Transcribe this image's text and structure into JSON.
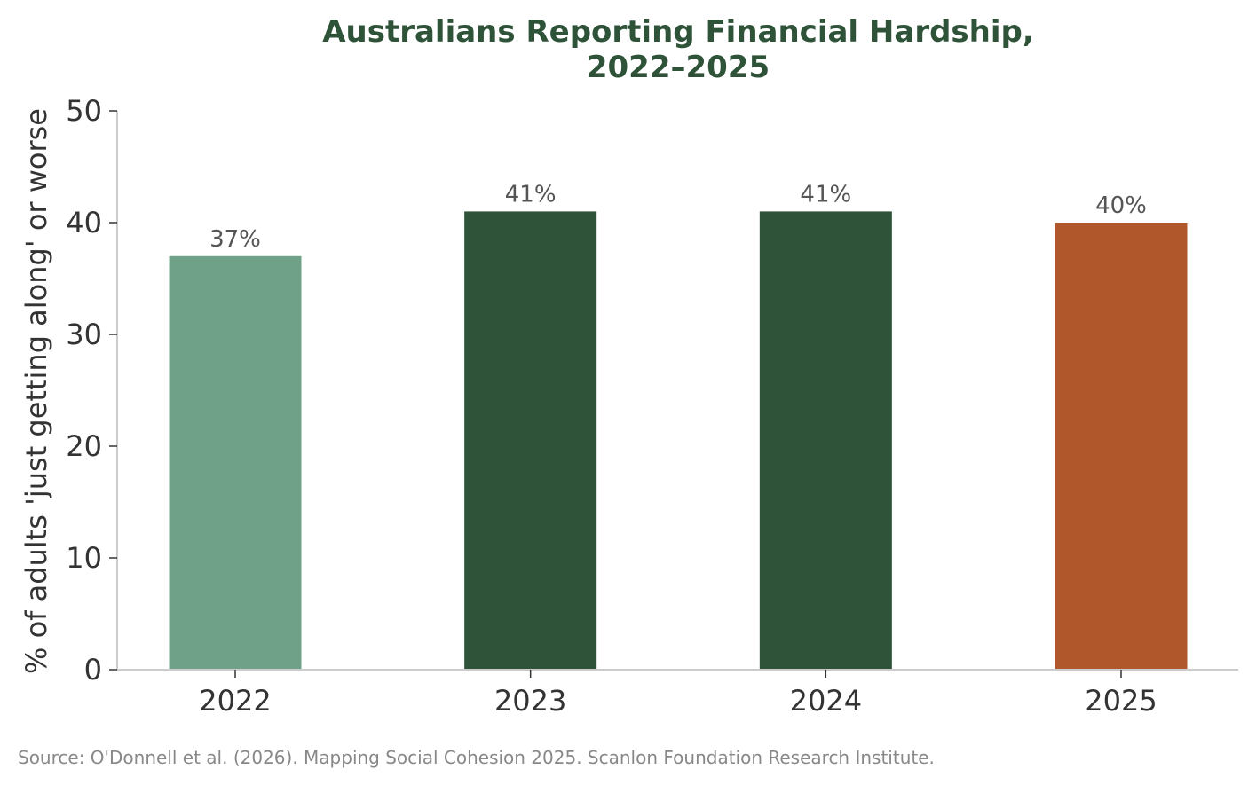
{
  "chart_data": {
    "type": "bar",
    "title_lines": [
      "Australians Reporting Financial Hardship,",
      "2022–2025"
    ],
    "xlabel": "",
    "ylabel": "% of adults 'just getting along' or worse",
    "categories": [
      "2022",
      "2023",
      "2024",
      "2025"
    ],
    "values": [
      37,
      41,
      41,
      40
    ],
    "data_labels": [
      "37%",
      "41%",
      "41%",
      "40%"
    ],
    "bar_colors": [
      "#6fa088",
      "#2e5339",
      "#2e5339",
      "#b0572b"
    ],
    "ylim": [
      0,
      50
    ],
    "yticks": [
      0,
      10,
      20,
      30,
      40,
      50
    ],
    "ytick_labels": [
      "0",
      "10",
      "20",
      "30",
      "40",
      "50"
    ],
    "grid": false,
    "legend": "none"
  },
  "colors": {
    "title": "#2e5339",
    "axis": "#cccccc",
    "tick_text": "#333333",
    "data_label": "#555555",
    "source": "#888888"
  },
  "source_note": "Source: O'Donnell et al. (2026). Mapping Social Cohesion 2025. Scanlon Foundation Research Institute."
}
